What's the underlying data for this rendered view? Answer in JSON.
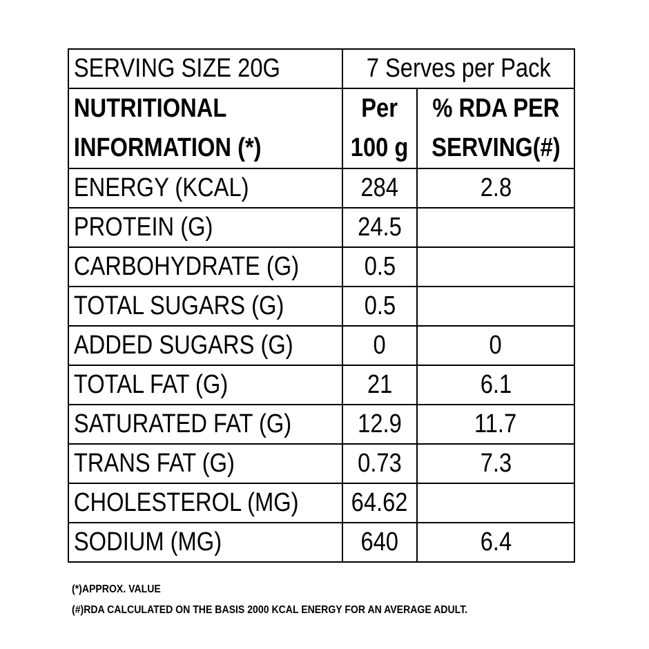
{
  "serving": {
    "size": "SERVING SIZE 20G",
    "serves": "7 Serves per Pack"
  },
  "header": {
    "col1_line1": "NUTRITIONAL",
    "col1_line2": "INFORMATION (*)",
    "col2_line1": "Per",
    "col2_line2": "100 g",
    "col3_line1": "% RDA PER",
    "col3_line2": "SERVING(#)"
  },
  "rows": [
    {
      "name": "ENERGY (KCAL)",
      "per100": "284",
      "rda": "2.8"
    },
    {
      "name": "PROTEIN (G)",
      "per100": "24.5",
      "rda": ""
    },
    {
      "name": "CARBOHYDRATE (G)",
      "per100": "0.5",
      "rda": ""
    },
    {
      "name": "TOTAL SUGARS (G)",
      "per100": "0.5",
      "rda": ""
    },
    {
      "name": "ADDED SUGARS (G)",
      "per100": "0",
      "rda": "0"
    },
    {
      "name": "TOTAL FAT (G)",
      "per100": "21",
      "rda": "6.1"
    },
    {
      "name": "SATURATED FAT (G)",
      "per100": "12.9",
      "rda": "11.7"
    },
    {
      "name": "TRANS FAT (G)",
      "per100": "0.73",
      "rda": "7.3"
    },
    {
      "name": "CHOLESTEROL (MG)",
      "per100": "64.62",
      "rda": ""
    },
    {
      "name": "SODIUM (MG)",
      "per100": "640",
      "rda": "6.4"
    }
  ],
  "footnotes": [
    "(*)APPROX. VALUE",
    "(#)RDA CALCULATED ON THE BASIS 2000 KCAL ENERGY FOR AN AVERAGE ADULT."
  ]
}
